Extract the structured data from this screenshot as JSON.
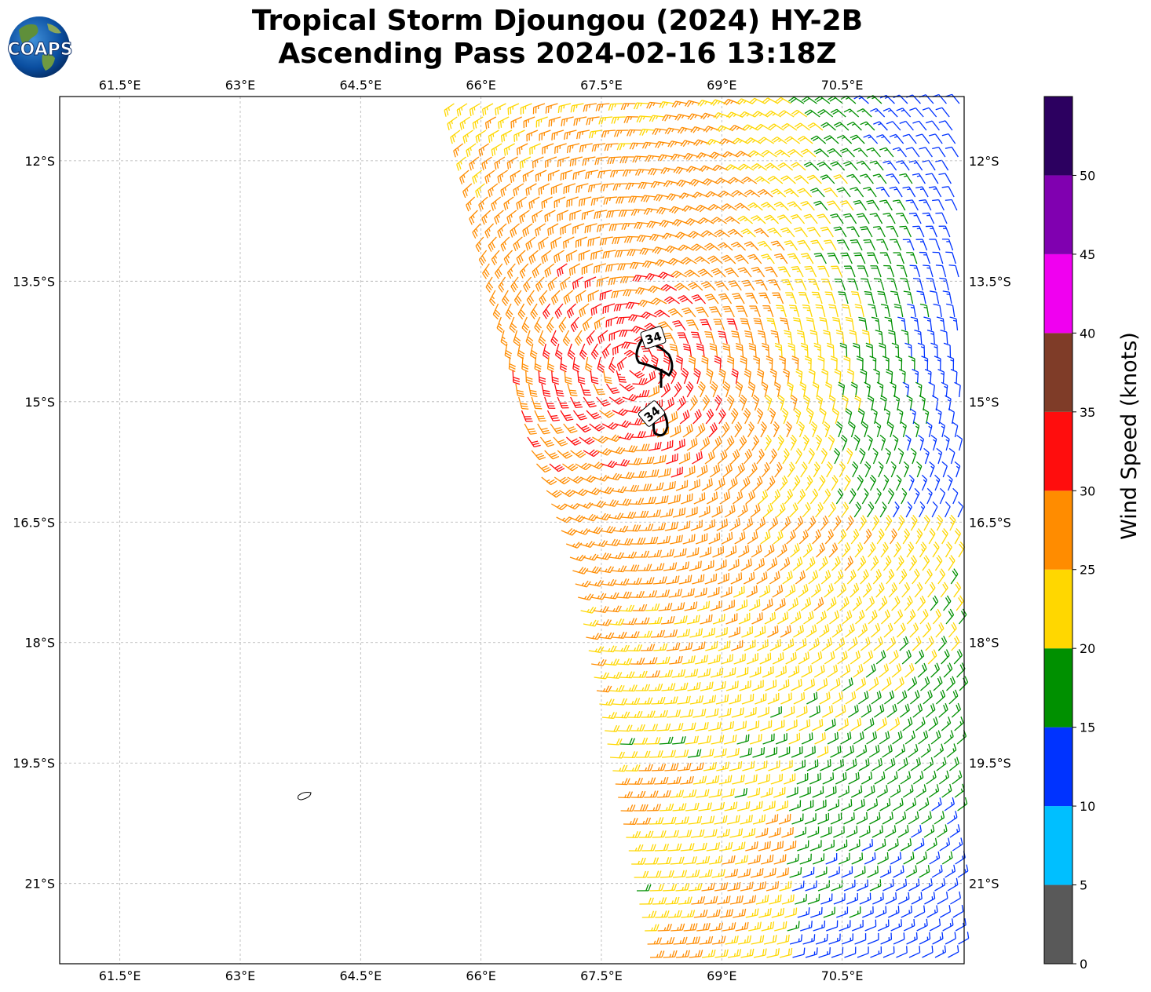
{
  "title": {
    "line1": "Tropical Storm Djoungou (2024) HY-2B",
    "line2": "Ascending Pass 2024-02-16 13:18Z"
  },
  "logo": {
    "text": "COAPS",
    "icon": "globe-logo"
  },
  "map": {
    "lon_range": [
      60.75,
      72.02
    ],
    "lat_range": [
      -22.0,
      -11.2
    ],
    "lon_ticks": [
      "61.5°E",
      "63°E",
      "64.5°E",
      "66°E",
      "67.5°E",
      "69°E",
      "70.5°E"
    ],
    "lon_tick_values": [
      61.5,
      63,
      64.5,
      66,
      67.5,
      69,
      70.5
    ],
    "lat_ticks": [
      "12°S",
      "13.5°S",
      "15°S",
      "16.5°S",
      "18°S",
      "19.5°S",
      "21°S"
    ],
    "lat_tick_values": [
      -12,
      -13.5,
      -15,
      -16.5,
      -18,
      -19.5,
      -21
    ],
    "grid": true,
    "contour_label": "34",
    "contour_labels": [
      "34",
      "34"
    ]
  },
  "colorbar": {
    "label": "Wind Speed (knots)",
    "ticks": [
      "0",
      "5",
      "10",
      "15",
      "20",
      "25",
      "30",
      "35",
      "40",
      "45",
      "50"
    ],
    "bins": [
      {
        "min": 0,
        "max": 5,
        "color": "#595959"
      },
      {
        "min": 5,
        "max": 10,
        "color": "#00bfff"
      },
      {
        "min": 10,
        "max": 15,
        "color": "#0033ff"
      },
      {
        "min": 15,
        "max": 20,
        "color": "#009000"
      },
      {
        "min": 20,
        "max": 25,
        "color": "#ffd700"
      },
      {
        "min": 25,
        "max": 30,
        "color": "#ff8c00"
      },
      {
        "min": 30,
        "max": 35,
        "color": "#ff0d0d"
      },
      {
        "min": 35,
        "max": 40,
        "color": "#7f3c28"
      },
      {
        "min": 40,
        "max": 45,
        "color": "#f000f0"
      },
      {
        "min": 45,
        "max": 50,
        "color": "#8000b0"
      },
      {
        "min": 50,
        "max": 55,
        "color": "#2c0060"
      }
    ]
  },
  "storm": {
    "center_lon": 67.9,
    "center_lat": -14.55
  }
}
